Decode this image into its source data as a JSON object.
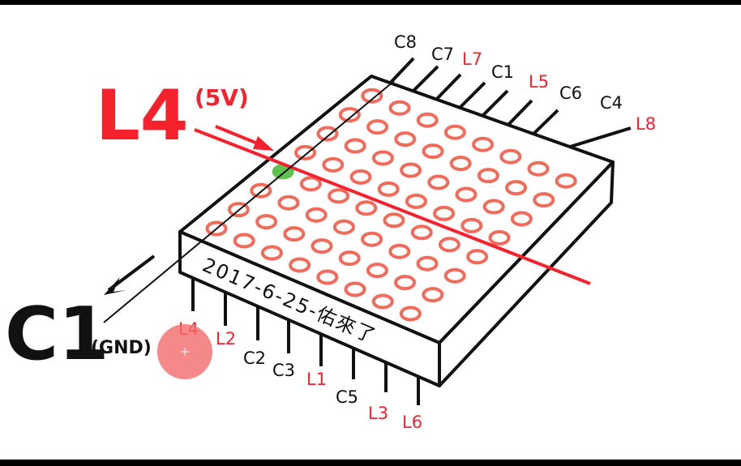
{
  "colors": {
    "red": "#f5222d",
    "black": "#111111",
    "led": "#f26b5a",
    "lit_led": "#5fc24f",
    "cursor_dot": "#f26a6a",
    "background": "#ffffff"
  },
  "callouts": {
    "row_label": "L4",
    "row_voltage": "(5V)",
    "column_label": "C1",
    "column_ground": "(GND)"
  },
  "top_pins": [
    {
      "label": "C8",
      "color": "black"
    },
    {
      "label": "C7",
      "color": "black"
    },
    {
      "label": "L7",
      "color": "red"
    },
    {
      "label": "C1",
      "color": "black"
    },
    {
      "label": "L5",
      "color": "red"
    },
    {
      "label": "C6",
      "color": "black"
    },
    {
      "label": "C4",
      "color": "black"
    },
    {
      "label": "L8",
      "color": "red"
    }
  ],
  "bottom_pins": [
    {
      "label": "L4",
      "color": "red"
    },
    {
      "label": "L2",
      "color": "red"
    },
    {
      "label": "C2",
      "color": "black"
    },
    {
      "label": "C3",
      "color": "black"
    },
    {
      "label": "L1",
      "color": "red"
    },
    {
      "label": "C5",
      "color": "black"
    },
    {
      "label": "L3",
      "color": "red"
    },
    {
      "label": "L6",
      "color": "red"
    }
  ],
  "module_label": "2017-6-25-佑來了",
  "matrix": {
    "rows": 8,
    "cols": 8,
    "lit_row": 4,
    "lit_col": 1
  }
}
